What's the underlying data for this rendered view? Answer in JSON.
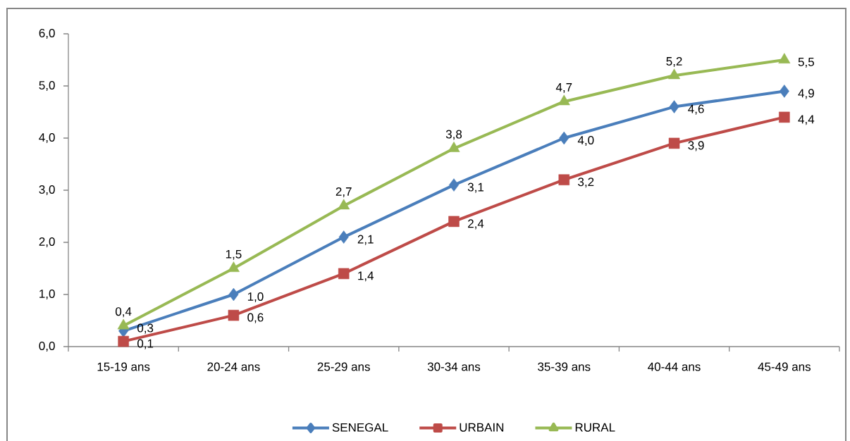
{
  "chart_data": {
    "type": "line",
    "categories": [
      "15-19 ans",
      "20-24 ans",
      "25-29 ans",
      "30-34 ans",
      "35-39 ans",
      "40-44 ans",
      "45-49 ans"
    ],
    "series": [
      {
        "name": "SENEGAL",
        "color": "#4a7ebb",
        "marker": "diamond",
        "values": [
          0.3,
          1.0,
          2.1,
          3.1,
          4.0,
          4.6,
          4.9
        ],
        "value_labels": [
          "0,3",
          "1,0",
          "2,1",
          "3,1",
          "4,0",
          "4,6",
          "4,9"
        ]
      },
      {
        "name": "URBAIN",
        "color": "#be4b48",
        "marker": "square",
        "values": [
          0.1,
          0.6,
          1.4,
          2.4,
          3.2,
          3.9,
          4.4
        ],
        "value_labels": [
          "0,1",
          "0,6",
          "1,4",
          "2,4",
          "3,2",
          "3,9",
          "4,4"
        ]
      },
      {
        "name": "RURAL",
        "color": "#98b954",
        "marker": "triangle",
        "values": [
          0.4,
          1.5,
          2.7,
          3.8,
          4.7,
          5.2,
          5.5
        ],
        "value_labels": [
          "0,4",
          "1,5",
          "2,7",
          "3,8",
          "4,7",
          "5,2",
          "5,5"
        ]
      }
    ],
    "ylim": [
      0,
      6
    ],
    "yticks": [
      {
        "value": 0,
        "label": "0,0"
      },
      {
        "value": 1,
        "label": "1,0"
      },
      {
        "value": 2,
        "label": "2,0"
      },
      {
        "value": 3,
        "label": "3,0"
      },
      {
        "value": 4,
        "label": "4,0"
      },
      {
        "value": 5,
        "label": "5,0"
      },
      {
        "value": 6,
        "label": "6,0"
      }
    ],
    "legend": "bottom",
    "line_style": "solid"
  }
}
